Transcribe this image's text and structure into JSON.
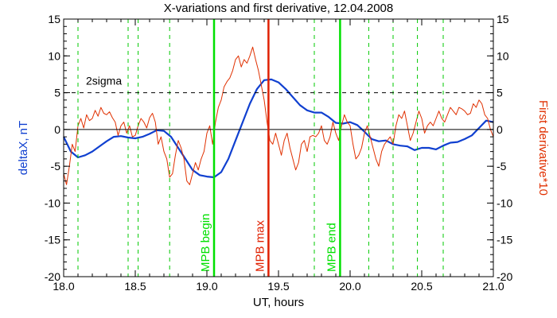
{
  "chart_data": {
    "type": "line",
    "title": "X-variations and first derivative, 12.04.2008",
    "xlabel": "UT, hours",
    "ylabel_left": "deltaX, nT",
    "ylabel_right": "First derivative*10",
    "xlim": [
      18.0,
      21.0
    ],
    "ylim": [
      -20,
      15
    ],
    "x_ticks": [
      "18.0",
      "18.5",
      "19.0",
      "19.5",
      "20.0",
      "20.5",
      "21.0"
    ],
    "y_ticks": [
      "15",
      "10",
      "5",
      "0",
      "-5",
      "-10",
      "-15",
      "-20"
    ],
    "reference_lines": [
      {
        "label": "2sigma",
        "y": 5,
        "style": "dashed",
        "color": "#000000"
      },
      {
        "label": "",
        "y": 0,
        "style": "solid",
        "color": "#000000"
      }
    ],
    "markers": [
      {
        "x": 19.05,
        "label": "MPB begin",
        "color": "#00e000"
      },
      {
        "x": 19.43,
        "label": "MPB max",
        "color": "#e02000"
      },
      {
        "x": 19.93,
        "label": "MPB end",
        "color": "#00e000"
      }
    ],
    "dashed_markers": {
      "color": "#00c800",
      "x": [
        18.1,
        18.45,
        18.52,
        18.74,
        19.75,
        20.13,
        20.3,
        20.47,
        20.65
      ]
    },
    "series": [
      {
        "name": "deltaX",
        "color": "#1040d0",
        "points": [
          [
            18.0,
            -1.0
          ],
          [
            18.05,
            -3.0
          ],
          [
            18.1,
            -3.8
          ],
          [
            18.15,
            -3.5
          ],
          [
            18.2,
            -3.0
          ],
          [
            18.25,
            -2.3
          ],
          [
            18.3,
            -1.6
          ],
          [
            18.35,
            -1.0
          ],
          [
            18.4,
            -0.9
          ],
          [
            18.45,
            -1.1
          ],
          [
            18.5,
            -1.2
          ],
          [
            18.55,
            -1.0
          ],
          [
            18.6,
            -0.6
          ],
          [
            18.65,
            -0.1
          ],
          [
            18.7,
            -0.2
          ],
          [
            18.75,
            -1.0
          ],
          [
            18.8,
            -2.5
          ],
          [
            18.85,
            -4.0
          ],
          [
            18.9,
            -5.5
          ],
          [
            18.95,
            -6.2
          ],
          [
            19.0,
            -6.4
          ],
          [
            19.05,
            -6.5
          ],
          [
            19.1,
            -5.8
          ],
          [
            19.15,
            -4.0
          ],
          [
            19.2,
            -1.5
          ],
          [
            19.25,
            1.0
          ],
          [
            19.3,
            3.5
          ],
          [
            19.35,
            5.5
          ],
          [
            19.4,
            6.7
          ],
          [
            19.45,
            6.8
          ],
          [
            19.5,
            6.4
          ],
          [
            19.55,
            5.5
          ],
          [
            19.6,
            4.4
          ],
          [
            19.65,
            3.3
          ],
          [
            19.7,
            2.6
          ],
          [
            19.75,
            2.3
          ],
          [
            19.8,
            2.3
          ],
          [
            19.85,
            1.7
          ],
          [
            19.9,
            0.9
          ],
          [
            19.95,
            0.8
          ],
          [
            20.0,
            1.0
          ],
          [
            20.05,
            0.6
          ],
          [
            20.1,
            -0.3
          ],
          [
            20.15,
            -1.3
          ],
          [
            20.2,
            -1.6
          ],
          [
            20.25,
            -1.5
          ],
          [
            20.3,
            -2.0
          ],
          [
            20.35,
            -2.2
          ],
          [
            20.4,
            -2.3
          ],
          [
            20.45,
            -2.8
          ],
          [
            20.5,
            -2.5
          ],
          [
            20.55,
            -2.5
          ],
          [
            20.6,
            -2.7
          ],
          [
            20.65,
            -2.2
          ],
          [
            20.7,
            -1.8
          ],
          [
            20.75,
            -1.7
          ],
          [
            20.8,
            -1.3
          ],
          [
            20.85,
            -0.8
          ],
          [
            20.9,
            0.2
          ],
          [
            20.95,
            1.2
          ],
          [
            21.0,
            1.0
          ]
        ]
      },
      {
        "name": "First derivative*10",
        "color": "#e03000",
        "points": [
          [
            18.0,
            -6.0
          ],
          [
            18.02,
            -7.5
          ],
          [
            18.04,
            -5.0
          ],
          [
            18.06,
            -2.0
          ],
          [
            18.08,
            -3.0
          ],
          [
            18.1,
            0.5
          ],
          [
            18.12,
            1.5
          ],
          [
            18.14,
            0.2
          ],
          [
            18.16,
            2.0
          ],
          [
            18.18,
            1.2
          ],
          [
            18.2,
            1.5
          ],
          [
            18.22,
            2.6
          ],
          [
            18.24,
            1.8
          ],
          [
            18.26,
            3.0
          ],
          [
            18.28,
            2.2
          ],
          [
            18.3,
            2.0
          ],
          [
            18.32,
            2.4
          ],
          [
            18.34,
            1.6
          ],
          [
            18.36,
            1.0
          ],
          [
            18.38,
            -0.8
          ],
          [
            18.4,
            0.5
          ],
          [
            18.42,
            1.0
          ],
          [
            18.44,
            -0.5
          ],
          [
            18.46,
            0.5
          ],
          [
            18.48,
            -1.0
          ],
          [
            18.5,
            -0.8
          ],
          [
            18.52,
            0.5
          ],
          [
            18.54,
            1.5
          ],
          [
            18.56,
            1.0
          ],
          [
            18.58,
            0.2
          ],
          [
            18.6,
            1.6
          ],
          [
            18.62,
            2.2
          ],
          [
            18.64,
            1.0
          ],
          [
            18.66,
            -2.0
          ],
          [
            18.68,
            -1.0
          ],
          [
            18.7,
            -3.0
          ],
          [
            18.72,
            -4.0
          ],
          [
            18.74,
            -6.5
          ],
          [
            18.76,
            -6.0
          ],
          [
            18.78,
            -3.5
          ],
          [
            18.8,
            -1.5
          ],
          [
            18.82,
            -2.5
          ],
          [
            18.84,
            -4.0
          ],
          [
            18.86,
            -7.0
          ],
          [
            18.88,
            -7.5
          ],
          [
            18.9,
            -6.0
          ],
          [
            18.92,
            -4.5
          ],
          [
            18.94,
            -5.5
          ],
          [
            18.96,
            -4.0
          ],
          [
            18.98,
            -3.0
          ],
          [
            19.0,
            -0.5
          ],
          [
            19.02,
            0.5
          ],
          [
            19.04,
            -2.0
          ],
          [
            19.06,
            1.0
          ],
          [
            19.08,
            3.0
          ],
          [
            19.1,
            4.0
          ],
          [
            19.12,
            5.8
          ],
          [
            19.14,
            6.5
          ],
          [
            19.16,
            7.0
          ],
          [
            19.18,
            8.0
          ],
          [
            19.2,
            9.5
          ],
          [
            19.22,
            10.0
          ],
          [
            19.24,
            8.5
          ],
          [
            19.26,
            9.5
          ],
          [
            19.28,
            9.0
          ],
          [
            19.3,
            10.0
          ],
          [
            19.32,
            11.2
          ],
          [
            19.34,
            9.5
          ],
          [
            19.36,
            8.0
          ],
          [
            19.38,
            6.0
          ],
          [
            19.4,
            4.0
          ],
          [
            19.42,
            1.0
          ],
          [
            19.44,
            -1.5
          ],
          [
            19.46,
            -2.0
          ],
          [
            19.48,
            -0.5
          ],
          [
            19.5,
            -2.0
          ],
          [
            19.52,
            -3.5
          ],
          [
            19.54,
            -1.5
          ],
          [
            19.56,
            -0.5
          ],
          [
            19.58,
            -2.5
          ],
          [
            19.6,
            -4.0
          ],
          [
            19.62,
            -5.5
          ],
          [
            19.64,
            -4.5
          ],
          [
            19.66,
            -2.0
          ],
          [
            19.68,
            -1.5
          ],
          [
            19.7,
            -3.0
          ],
          [
            19.72,
            -1.0
          ],
          [
            19.74,
            -0.8
          ],
          [
            19.76,
            -1.0
          ],
          [
            19.78,
            -0.5
          ],
          [
            19.8,
            0.5
          ],
          [
            19.82,
            -1.5
          ],
          [
            19.84,
            -2.0
          ],
          [
            19.86,
            -1.0
          ],
          [
            19.88,
            1.0
          ],
          [
            19.9,
            -0.5
          ],
          [
            19.92,
            -1.5
          ],
          [
            19.94,
            0.5
          ],
          [
            19.96,
            2.0
          ],
          [
            19.98,
            1.0
          ],
          [
            20.0,
            0.5
          ],
          [
            20.02,
            -2.0
          ],
          [
            20.04,
            -4.0
          ],
          [
            20.06,
            -3.5
          ],
          [
            20.08,
            -2.5
          ],
          [
            20.1,
            -0.5
          ],
          [
            20.12,
            0.5
          ],
          [
            20.14,
            -1.0
          ],
          [
            20.16,
            -2.5
          ],
          [
            20.18,
            -4.0
          ],
          [
            20.2,
            -5.0
          ],
          [
            20.22,
            -3.0
          ],
          [
            20.24,
            -2.0
          ],
          [
            20.26,
            -1.5
          ],
          [
            20.28,
            -1.0
          ],
          [
            20.3,
            -2.0
          ],
          [
            20.32,
            0.5
          ],
          [
            20.34,
            2.0
          ],
          [
            20.36,
            1.5
          ],
          [
            20.38,
            2.5
          ],
          [
            20.4,
            0.5
          ],
          [
            20.42,
            -1.5
          ],
          [
            20.44,
            -0.5
          ],
          [
            20.46,
            1.0
          ],
          [
            20.48,
            2.5
          ],
          [
            20.5,
            1.5
          ],
          [
            20.52,
            -0.5
          ],
          [
            20.54,
            0.5
          ],
          [
            20.56,
            1.0
          ],
          [
            20.58,
            0.5
          ],
          [
            20.6,
            1.5
          ],
          [
            20.62,
            2.5
          ],
          [
            20.64,
            1.5
          ],
          [
            20.66,
            1.0
          ],
          [
            20.68,
            2.0
          ],
          [
            20.7,
            3.0
          ],
          [
            20.72,
            2.5
          ],
          [
            20.74,
            2.0
          ],
          [
            20.76,
            3.0
          ],
          [
            20.78,
            2.8
          ],
          [
            20.8,
            2.5
          ],
          [
            20.82,
            2.0
          ],
          [
            20.84,
            2.2
          ],
          [
            20.86,
            3.5
          ],
          [
            20.88,
            3.0
          ],
          [
            20.9,
            4.0
          ],
          [
            20.92,
            3.5
          ],
          [
            20.94,
            2.0
          ],
          [
            20.96,
            1.5
          ],
          [
            20.98,
            0.0
          ],
          [
            21.0,
            -1.0
          ]
        ]
      }
    ],
    "grid": false,
    "legend": "none"
  }
}
